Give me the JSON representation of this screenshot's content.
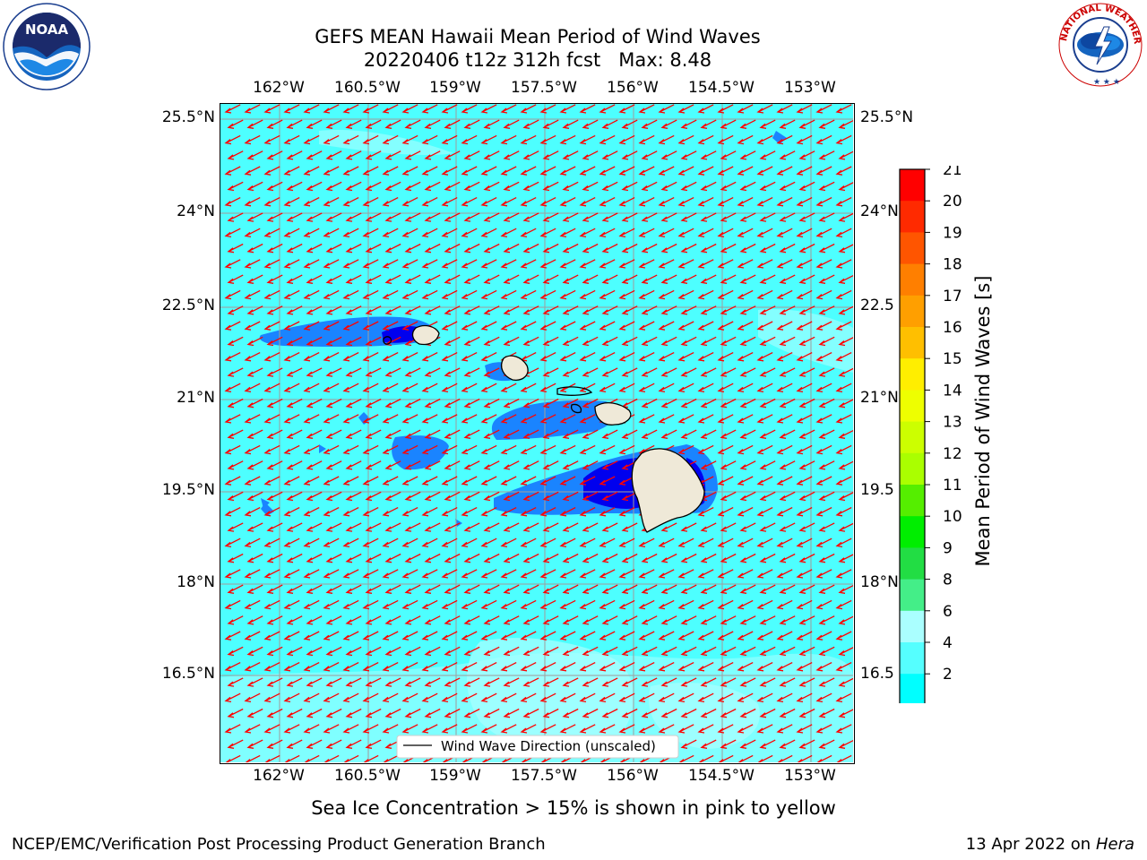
{
  "title": {
    "line1": "GEFS MEAN Hawaii Mean Period of Wind Waves",
    "line2": "20220406 t12z 312h fcst   Max: 8.48"
  },
  "logos": {
    "noaa_text": "NOAA",
    "noaa_ring": "NATIONAL OCEANIC AND ATMOSPHERIC ADMINISTRATION · U.S. DEPARTMENT OF COMMERCE",
    "nws_ring": "NATIONAL WEATHER SERVICE"
  },
  "axes": {
    "lon_labels": [
      "162°W",
      "160.5°W",
      "159°W",
      "157.5°W",
      "156°W",
      "154.5°W",
      "153°W"
    ],
    "lat_labels": [
      "25.5°N",
      "24°N",
      "22.5°N",
      "21°N",
      "19.5°N",
      "18°N",
      "16.5°N"
    ],
    "lat_labels_right": [
      "25.5°N",
      "24°N",
      "22.5",
      "21°N",
      "19.5",
      "18°N",
      "16.5"
    ]
  },
  "legend": {
    "label": "Wind Wave Direction (unscaled)"
  },
  "colorbar": {
    "label": "Mean Period of Wind Waves [s]",
    "ticks": [
      "21",
      "20",
      "19",
      "18",
      "17",
      "16",
      "15",
      "14",
      "13",
      "12",
      "11",
      "10",
      "9",
      "8",
      "6",
      "4",
      "2"
    ],
    "colors": [
      "#ff0000",
      "#ff2a00",
      "#ff5500",
      "#ff7f00",
      "#ff9f00",
      "#ffbf00",
      "#ffee00",
      "#eeff00",
      "#ccff00",
      "#aaff00",
      "#55ee00",
      "#00ee00",
      "#22dd44",
      "#44ee88",
      "#aaffff",
      "#55ffff",
      "#00ffff",
      "#0088ff",
      "#0000ee"
    ]
  },
  "chart_data": {
    "type": "map",
    "variable": "Mean Period of Wind Waves",
    "units": "s",
    "max": 8.48,
    "lon_range": [
      -163,
      -152.2
    ],
    "lat_range": [
      15,
      26
    ],
    "arrow_direction": "toward southwest"
  },
  "notes": {
    "sea_ice": "Sea Ice Concentration > 15% is shown in pink to yellow"
  },
  "footer": {
    "left": "NCEP/EMC/Verification Post Processing Product Generation Branch",
    "right_date": "13 Apr 2022 on ",
    "right_machine": "Hera"
  }
}
